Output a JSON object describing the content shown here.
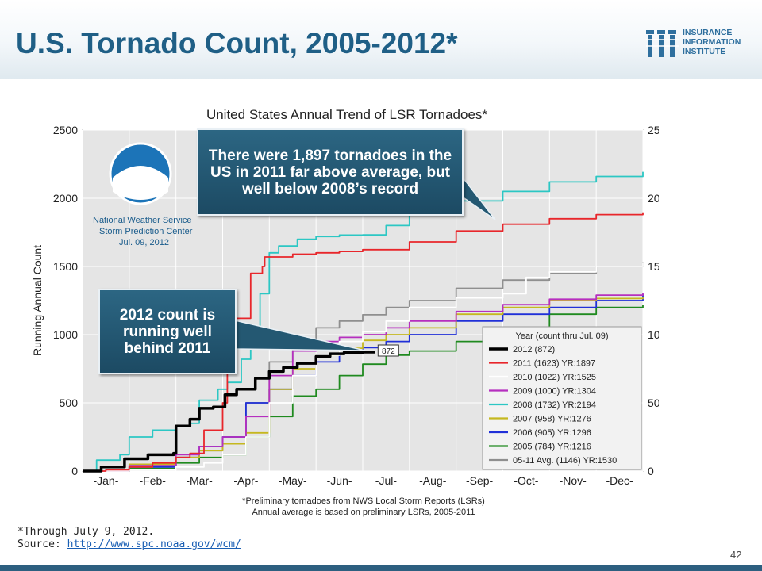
{
  "slide": {
    "title": "U.S. Tornado Count, 2005-2012*",
    "logo_text": [
      "INSURANCE",
      "INFORMATION",
      "INSTITUTE"
    ],
    "footnote_line1": "*Through July 9, 2012.",
    "footnote_prefix": "Source: ",
    "footnote_link": "http://www.spc.noaa.gov/wcm/",
    "page_number": "42",
    "colors": {
      "title": "#1f5f86",
      "callout_bg": "#245872",
      "bottom_bar": "#2d5f80"
    }
  },
  "callouts": {
    "top": "There were 1,897 tornadoes in the US in 2011 far above average, but well below 2008’s record",
    "middle": "2012 count is running well behind 2011"
  },
  "chart_data": {
    "type": "line",
    "title": "United States Annual Trend of LSR Tornadoes*",
    "ylabel": "Running Annual Count",
    "xlabel": "",
    "ylim": [
      0,
      2500
    ],
    "yticks": [
      0,
      500,
      1000,
      1500,
      2000,
      2500
    ],
    "xlim": [
      0,
      12
    ],
    "month_labels": [
      "-Jan-",
      "-Feb-",
      "-Mar-",
      "-Apr-",
      "-May-",
      "-Jun-",
      "-Jul-",
      "-Aug-",
      "-Sep-",
      "-Oct-",
      "-Nov-",
      "-Dec-"
    ],
    "grid": true,
    "legend_title": "Year (count thru Jul. 09)",
    "legend_position": "lower-right",
    "noaa_text": [
      "National Weather Service",
      "Storm Prediction Center",
      "Jul. 09, 2012"
    ],
    "current_marker": {
      "x": 6.26,
      "y": 872,
      "label": "872"
    },
    "footnote": [
      "*Preliminary tornadoes from NWS Local Storm Reports (LSRs)",
      "Annual average is based on preliminary LSRs, 2005-2011"
    ],
    "series": [
      {
        "name": "2012 (872)",
        "color": "#000000",
        "x": [
          0,
          0.4,
          0.9,
          1.4,
          1.95,
          2.0,
          2.3,
          2.5,
          2.8,
          3.05,
          3.3,
          3.7,
          4.0,
          4.3,
          4.6,
          5.0,
          5.3,
          5.6,
          6.0,
          6.26
        ],
        "y": [
          0,
          30,
          90,
          120,
          130,
          330,
          380,
          460,
          470,
          560,
          600,
          680,
          730,
          760,
          790,
          840,
          860,
          870,
          872,
          872
        ]
      },
      {
        "name": "2011 (1623) YR:1897",
        "color": "#e8262b",
        "x": [
          0,
          0.5,
          1.0,
          1.5,
          2.0,
          2.3,
          2.6,
          3.0,
          3.1,
          3.3,
          3.6,
          3.85,
          3.9,
          4.5,
          5.0,
          5.5,
          6.0,
          7.0,
          8.0,
          9.0,
          10.0,
          11.0,
          12.0
        ],
        "y": [
          0,
          10,
          30,
          60,
          100,
          130,
          300,
          500,
          850,
          1120,
          1450,
          1500,
          1570,
          1590,
          1600,
          1610,
          1623,
          1680,
          1760,
          1810,
          1850,
          1880,
          1897
        ]
      },
      {
        "name": "2010 (1022) YR:1525",
        "color": "#ffffff",
        "x": [
          0,
          1,
          2,
          2.6,
          3.0,
          3.5,
          4.0,
          4.5,
          5.0,
          5.5,
          6.0,
          6.5,
          7.0,
          8.0,
          9.0,
          9.5,
          10.0,
          11.0,
          12.0
        ],
        "y": [
          0,
          10,
          30,
          60,
          120,
          250,
          500,
          700,
          850,
          950,
          1022,
          1100,
          1200,
          1270,
          1300,
          1420,
          1460,
          1500,
          1525
        ]
      },
      {
        "name": "2009 (1000) YR:1304",
        "color": "#b62fbf",
        "x": [
          0,
          1,
          2,
          2.5,
          3.0,
          3.5,
          4.0,
          4.5,
          5.0,
          5.5,
          6.0,
          6.5,
          7.0,
          8.0,
          9.0,
          10.0,
          11.0,
          12.0
        ],
        "y": [
          0,
          40,
          120,
          180,
          250,
          400,
          700,
          880,
          950,
          980,
          1000,
          1050,
          1100,
          1170,
          1220,
          1260,
          1290,
          1304
        ]
      },
      {
        "name": "2008 (1732) YR:2194",
        "color": "#2cc7c4",
        "x": [
          0,
          0.3,
          0.8,
          1.0,
          1.5,
          2.0,
          2.3,
          2.5,
          2.9,
          3.1,
          3.4,
          3.6,
          3.8,
          4.0,
          4.2,
          4.6,
          5.0,
          5.5,
          6.0,
          6.5,
          7.0,
          8.0,
          9.0,
          10.0,
          11.0,
          12.0
        ],
        "y": [
          0,
          80,
          120,
          250,
          300,
          330,
          350,
          520,
          600,
          650,
          820,
          1050,
          1300,
          1600,
          1650,
          1700,
          1720,
          1730,
          1732,
          1800,
          1900,
          1980,
          2050,
          2120,
          2160,
          2194
        ]
      },
      {
        "name": "2007 (958) YR:1276",
        "color": "#c5b81f",
        "x": [
          0,
          1,
          2,
          2.5,
          3.0,
          3.5,
          4.0,
          4.5,
          5.0,
          5.5,
          6.0,
          6.5,
          7.0,
          8.0,
          9.0,
          10.0,
          11.0,
          12.0
        ],
        "y": [
          0,
          50,
          100,
          150,
          200,
          280,
          600,
          750,
          850,
          900,
          958,
          1000,
          1050,
          1150,
          1200,
          1250,
          1265,
          1276
        ]
      },
      {
        "name": "2006 (905) YR:1296",
        "color": "#2030d8",
        "x": [
          0,
          1,
          2,
          2.5,
          3.0,
          3.5,
          4.0,
          4.5,
          5.0,
          5.5,
          6.0,
          6.5,
          7.0,
          8.0,
          9.0,
          10.0,
          11.0,
          12.0
        ],
        "y": [
          0,
          30,
          100,
          180,
          250,
          500,
          600,
          700,
          800,
          860,
          905,
          950,
          1000,
          1100,
          1150,
          1200,
          1250,
          1296
        ]
      },
      {
        "name": "2005 (784) YR:1216",
        "color": "#1f8a1f",
        "x": [
          0,
          1,
          2,
          2.5,
          3.0,
          3.5,
          4.0,
          4.5,
          5.0,
          5.5,
          6.0,
          6.5,
          7.0,
          8.0,
          9.0,
          10.0,
          11.0,
          12.0
        ],
        "y": [
          0,
          20,
          60,
          100,
          120,
          250,
          400,
          550,
          600,
          700,
          784,
          850,
          880,
          950,
          1050,
          1150,
          1200,
          1216
        ]
      },
      {
        "name": "05-11 Avg. (1146) YR:1530",
        "color": "#8f8f8f",
        "x": [
          0,
          1,
          2,
          2.5,
          3.0,
          3.5,
          4.0,
          4.5,
          5.0,
          5.5,
          6.0,
          6.5,
          7.0,
          8.0,
          9.0,
          10.0,
          11.0,
          12.0
        ],
        "y": [
          0,
          40,
          100,
          150,
          250,
          500,
          800,
          950,
          1050,
          1100,
          1146,
          1200,
          1250,
          1340,
          1400,
          1450,
          1500,
          1530
        ]
      }
    ]
  }
}
